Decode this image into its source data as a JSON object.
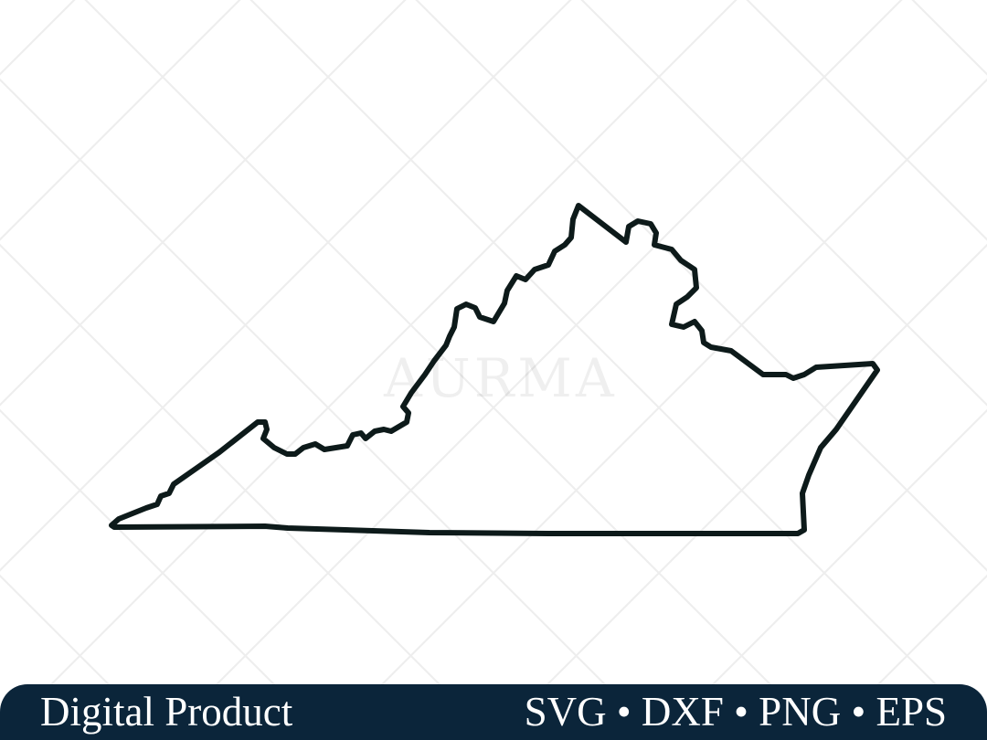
{
  "watermark": "AURMA",
  "banner": {
    "left_text": "Digital Product",
    "right_text": "SVG • DXF • PNG • EPS"
  },
  "colors": {
    "banner_bg": "#0b253a",
    "outline": "#0d1a1a"
  },
  "illustration": "virginia-state-outline"
}
